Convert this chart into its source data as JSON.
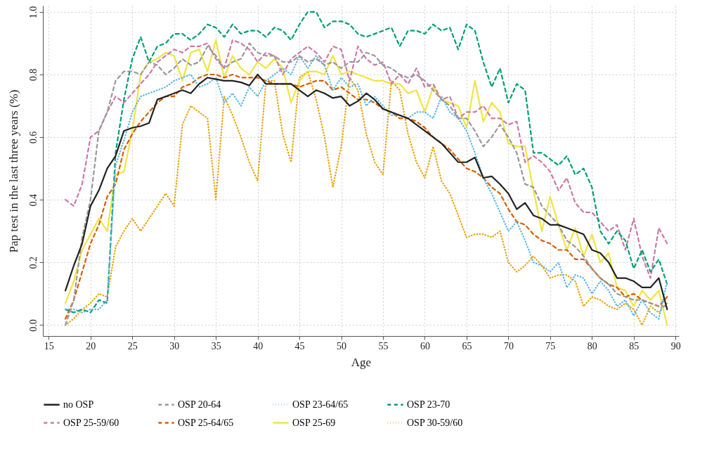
{
  "chart_data": {
    "type": "line",
    "xlabel": "Age",
    "ylabel": "Pap test in the last three years (%)",
    "xlim": [
      14.3,
      90.4
    ],
    "ylim": [
      -0.035,
      1.02
    ],
    "xticks": [
      15,
      20,
      25,
      30,
      35,
      40,
      45,
      50,
      55,
      60,
      65,
      70,
      75,
      80,
      85,
      90
    ],
    "yticks": [
      {
        "value": 0,
        "label": "0.0"
      },
      0.2,
      0.4,
      0.6,
      0.8,
      {
        "value": 1,
        "label": "1.0"
      }
    ],
    "grid": true,
    "legend": "bottom",
    "x": [
      17,
      18,
      19,
      20,
      21,
      22,
      23,
      24,
      25,
      26,
      27,
      28,
      29,
      30,
      31,
      32,
      33,
      34,
      35,
      36,
      37,
      38,
      39,
      40,
      41,
      42,
      43,
      44,
      45,
      46,
      47,
      48,
      49,
      50,
      51,
      52,
      53,
      54,
      55,
      56,
      57,
      58,
      59,
      60,
      61,
      62,
      63,
      64,
      65,
      66,
      67,
      68,
      69,
      70,
      71,
      72,
      73,
      74,
      75,
      76,
      77,
      78,
      79,
      80,
      81,
      82,
      83,
      84,
      85,
      86,
      87,
      88,
      89
    ],
    "series": [
      {
        "name": "no OSP",
        "color": "#222222",
        "line_style": "solid",
        "values": [
          0.11,
          0.19,
          0.26,
          0.38,
          0.43,
          0.5,
          0.54,
          0.62,
          0.63,
          0.635,
          0.645,
          0.72,
          0.73,
          0.74,
          0.75,
          0.74,
          0.77,
          0.79,
          0.785,
          0.78,
          0.78,
          0.775,
          0.765,
          0.8,
          0.77,
          0.77,
          0.77,
          0.77,
          0.75,
          0.73,
          0.75,
          0.74,
          0.725,
          0.73,
          0.7,
          0.715,
          0.74,
          0.72,
          0.69,
          0.68,
          0.67,
          0.66,
          0.64,
          0.62,
          0.6,
          0.58,
          0.55,
          0.52,
          0.52,
          0.535,
          0.47,
          0.475,
          0.45,
          0.42,
          0.37,
          0.39,
          0.35,
          0.34,
          0.32,
          0.32,
          0.31,
          0.3,
          0.29,
          0.24,
          0.23,
          0.2,
          0.15,
          0.15,
          0.14,
          0.12,
          0.12,
          0.15,
          0.05
        ]
      },
      {
        "name": "OSP 20-64",
        "color": "#999999",
        "line_style": "dashed",
        "values": [
          0.0,
          0.08,
          0.28,
          0.4,
          0.62,
          0.68,
          0.78,
          0.81,
          0.81,
          0.8,
          0.84,
          0.83,
          0.8,
          0.82,
          0.85,
          0.83,
          0.84,
          0.89,
          0.86,
          0.82,
          0.84,
          0.85,
          0.9,
          0.87,
          0.86,
          0.86,
          0.84,
          0.84,
          0.86,
          0.84,
          0.85,
          0.83,
          0.84,
          0.82,
          0.84,
          0.84,
          0.87,
          0.86,
          0.83,
          0.82,
          0.8,
          0.79,
          0.8,
          0.78,
          0.75,
          0.72,
          0.7,
          0.66,
          0.66,
          0.62,
          0.57,
          0.6,
          0.64,
          0.6,
          0.55,
          0.45,
          0.44,
          0.38,
          0.35,
          0.32,
          0.27,
          0.25,
          0.22,
          0.18,
          0.15,
          0.13,
          0.1,
          0.09,
          0.08,
          0.08,
          0.07,
          0.06,
          0.06
        ]
      },
      {
        "name": "OSP 23-64/65",
        "color": "#56b4e9",
        "line_style": "dotted",
        "values": [
          0.05,
          0.05,
          0.04,
          0.05,
          0.05,
          0.08,
          0.51,
          0.59,
          0.68,
          0.73,
          0.74,
          0.75,
          0.76,
          0.78,
          0.79,
          0.8,
          0.76,
          0.77,
          0.79,
          0.71,
          0.74,
          0.7,
          0.76,
          0.73,
          0.78,
          0.8,
          0.82,
          0.8,
          0.86,
          0.82,
          0.86,
          0.83,
          0.75,
          0.79,
          0.76,
          0.77,
          0.7,
          0.73,
          0.7,
          0.67,
          0.67,
          0.66,
          0.68,
          0.68,
          0.66,
          0.73,
          0.68,
          0.66,
          0.62,
          0.55,
          0.47,
          0.42,
          0.36,
          0.3,
          0.33,
          0.27,
          0.2,
          0.19,
          0.17,
          0.2,
          0.12,
          0.16,
          0.15,
          0.1,
          0.14,
          0.11,
          0.06,
          0.08,
          0.03,
          0.08,
          0.04,
          0.02,
          0.14
        ]
      },
      {
        "name": "OSP 23-70",
        "color": "#009e73",
        "line_style": "dashed",
        "values": [
          0.05,
          0.04,
          0.05,
          0.04,
          0.08,
          0.07,
          0.55,
          0.72,
          0.85,
          0.92,
          0.84,
          0.89,
          0.9,
          0.93,
          0.93,
          0.91,
          0.93,
          0.96,
          0.95,
          0.92,
          0.96,
          0.93,
          0.94,
          0.94,
          0.92,
          0.95,
          0.94,
          0.91,
          0.96,
          1.0,
          1.0,
          0.95,
          0.97,
          0.97,
          0.96,
          0.93,
          0.92,
          0.93,
          0.94,
          0.95,
          0.89,
          0.94,
          0.94,
          0.93,
          0.96,
          0.94,
          0.95,
          0.88,
          0.96,
          0.94,
          0.84,
          0.76,
          0.82,
          0.71,
          0.77,
          0.75,
          0.55,
          0.55,
          0.53,
          0.51,
          0.54,
          0.48,
          0.5,
          0.44,
          0.3,
          0.26,
          0.3,
          0.27,
          0.18,
          0.24,
          0.17,
          0.21,
          0.13
        ]
      },
      {
        "name": "OSP 25-59/60",
        "color": "#cc79a7",
        "line_style": "dashed",
        "values": [
          0.4,
          0.38,
          0.45,
          0.6,
          0.62,
          0.68,
          0.73,
          0.71,
          0.74,
          0.77,
          0.8,
          0.84,
          0.86,
          0.88,
          0.87,
          0.89,
          0.89,
          0.9,
          0.85,
          0.82,
          0.91,
          0.9,
          0.88,
          0.84,
          0.87,
          0.86,
          0.8,
          0.85,
          0.87,
          0.89,
          0.87,
          0.84,
          0.89,
          0.88,
          0.78,
          0.89,
          0.85,
          0.83,
          0.84,
          0.77,
          0.8,
          0.77,
          0.82,
          0.76,
          0.77,
          0.72,
          0.73,
          0.66,
          0.68,
          0.68,
          0.7,
          0.66,
          0.66,
          0.64,
          0.65,
          0.52,
          0.54,
          0.52,
          0.49,
          0.43,
          0.47,
          0.39,
          0.36,
          0.36,
          0.33,
          0.3,
          0.32,
          0.24,
          0.34,
          0.22,
          0.15,
          0.31,
          0.26
        ]
      },
      {
        "name": "OSP 25-64/65",
        "color": "#d55e00",
        "line_style": "dashed",
        "values": [
          0.02,
          0.08,
          0.17,
          0.26,
          0.32,
          0.41,
          0.45,
          0.56,
          0.61,
          0.65,
          0.68,
          0.71,
          0.73,
          0.73,
          0.76,
          0.77,
          0.79,
          0.8,
          0.8,
          0.79,
          0.8,
          0.79,
          0.79,
          0.79,
          0.78,
          0.77,
          0.77,
          0.77,
          0.76,
          0.77,
          0.78,
          0.78,
          0.75,
          0.76,
          0.74,
          0.72,
          0.72,
          0.71,
          0.69,
          0.68,
          0.66,
          0.66,
          0.65,
          0.63,
          0.6,
          0.58,
          0.56,
          0.53,
          0.5,
          0.49,
          0.47,
          0.44,
          0.42,
          0.37,
          0.33,
          0.32,
          0.29,
          0.27,
          0.26,
          0.24,
          0.24,
          0.21,
          0.21,
          0.18,
          0.15,
          0.13,
          0.12,
          0.09,
          0.1,
          0.08,
          0.07,
          0.06,
          0.09
        ]
      },
      {
        "name": "OSP 25-69",
        "color": "#f0e442",
        "line_style": "solid",
        "values": [
          0.07,
          0.14,
          0.24,
          0.29,
          0.34,
          0.3,
          0.48,
          0.49,
          0.62,
          0.8,
          0.84,
          0.85,
          0.87,
          0.86,
          0.78,
          0.87,
          0.88,
          0.81,
          0.91,
          0.79,
          0.86,
          0.82,
          0.8,
          0.84,
          0.82,
          0.85,
          0.82,
          0.71,
          0.78,
          0.81,
          0.81,
          0.8,
          0.86,
          0.8,
          0.81,
          0.8,
          0.79,
          0.78,
          0.78,
          0.77,
          0.77,
          0.74,
          0.75,
          0.68,
          0.76,
          0.72,
          0.71,
          0.7,
          0.63,
          0.78,
          0.65,
          0.71,
          0.68,
          0.58,
          0.57,
          0.57,
          0.43,
          0.3,
          0.41,
          0.32,
          0.24,
          0.31,
          0.22,
          0.29,
          0.2,
          0.23,
          0.12,
          0.11,
          0.06,
          0.11,
          0.08,
          0.11,
          0.0
        ]
      },
      {
        "name": "OSP 30-59/60",
        "color": "#e69f00",
        "line_style": "dotted",
        "values": [
          0.0,
          0.02,
          0.05,
          0.07,
          0.1,
          0.09,
          0.25,
          0.3,
          0.34,
          0.3,
          0.34,
          0.38,
          0.42,
          0.38,
          0.64,
          0.7,
          0.68,
          0.66,
          0.4,
          0.73,
          0.67,
          0.6,
          0.52,
          0.46,
          0.78,
          0.78,
          0.61,
          0.52,
          0.79,
          0.81,
          0.72,
          0.6,
          0.44,
          0.57,
          0.79,
          0.75,
          0.61,
          0.52,
          0.48,
          0.78,
          0.75,
          0.61,
          0.52,
          0.47,
          0.57,
          0.46,
          0.42,
          0.35,
          0.28,
          0.29,
          0.29,
          0.28,
          0.3,
          0.2,
          0.17,
          0.19,
          0.22,
          0.19,
          0.15,
          0.16,
          0.16,
          0.14,
          0.06,
          0.09,
          0.08,
          0.06,
          0.05,
          0.07,
          0.05,
          0.0,
          0.06,
          0.04,
          0.07
        ]
      }
    ]
  }
}
